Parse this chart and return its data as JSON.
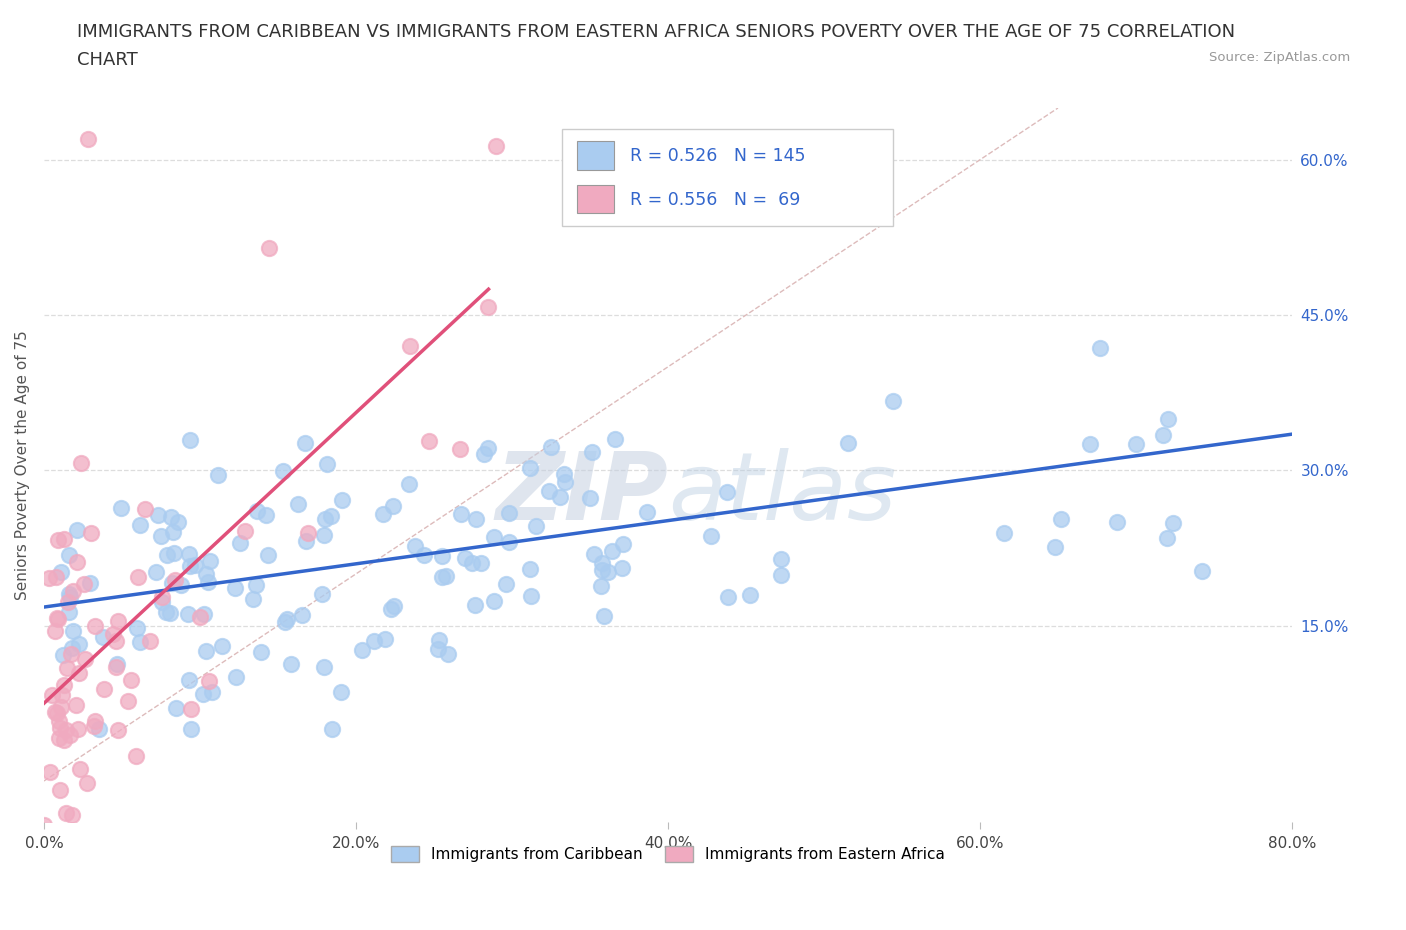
{
  "title_line1": "IMMIGRANTS FROM CARIBBEAN VS IMMIGRANTS FROM EASTERN AFRICA SENIORS POVERTY OVER THE AGE OF 75 CORRELATION",
  "title_line2": "CHART",
  "source_text": "Source: ZipAtlas.com",
  "ylabel": "Seniors Poverty Over the Age of 75",
  "caribbean_R": 0.526,
  "caribbean_N": 145,
  "eastern_africa_R": 0.556,
  "eastern_africa_N": 69,
  "caribbean_color": "#aaccf0",
  "eastern_africa_color": "#f0aac0",
  "caribbean_line_color": "#3366cc",
  "eastern_africa_line_color": "#e0507a",
  "ref_line_color": "#ddbbbb",
  "watermark_zip_color": "#c0cce0",
  "watermark_atlas_color": "#b8d0e8",
  "xmin": 0.0,
  "xmax": 0.8,
  "ymin": -0.04,
  "ymax": 0.65,
  "yticks": [
    0.15,
    0.3,
    0.45,
    0.6
  ],
  "xticks": [
    0.0,
    0.2,
    0.4,
    0.6,
    0.8
  ],
  "background_color": "#ffffff",
  "title_fontsize": 13,
  "axis_label_fontsize": 11,
  "tick_fontsize": 11,
  "caribbean_line_start_x": 0.0,
  "caribbean_line_start_y": 0.168,
  "caribbean_line_end_x": 0.8,
  "caribbean_line_end_y": 0.335,
  "eastern_africa_line_start_x": 0.0,
  "eastern_africa_line_start_y": 0.075,
  "eastern_africa_line_end_x": 0.285,
  "eastern_africa_line_end_y": 0.475
}
